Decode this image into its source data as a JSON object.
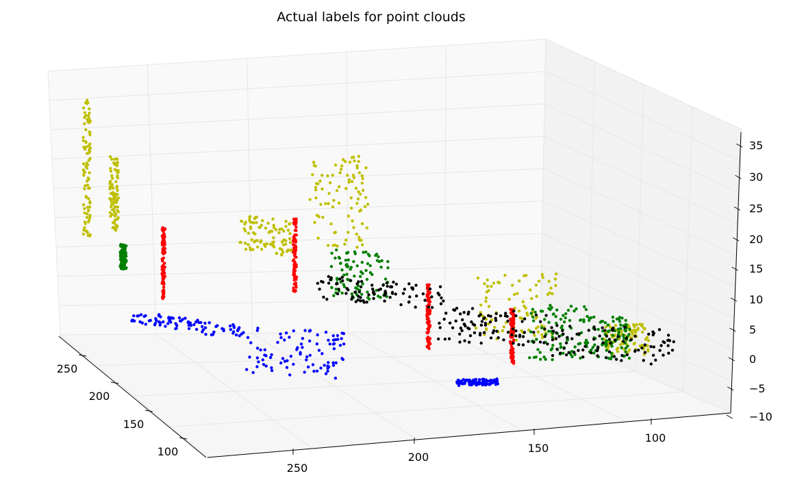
{
  "chart_data": {
    "type": "scatter",
    "projection": "3d",
    "title": "Actual labels for point clouds",
    "xlabel": "",
    "ylabel": "",
    "zlabel": "",
    "x_ticks": [
      "250",
      "200",
      "150",
      "100"
    ],
    "y_ticks": [
      "250",
      "200",
      "150",
      "100"
    ],
    "z_ticks": [
      "35",
      "30",
      "25",
      "20",
      "15",
      "10",
      "5",
      "0",
      "−5",
      "−10"
    ],
    "xlim": [
      290,
      90
    ],
    "ylim": [
      80,
      280
    ],
    "zlim": [
      -10,
      35
    ],
    "grid": true,
    "legend": "none",
    "series": [
      {
        "color": "#0000ff",
        "clusters": [
          {
            "x": [
              285,
              250
            ],
            "y": [
              200,
              165
            ],
            "z": [
              0,
              2
            ]
          },
          {
            "x": [
              250,
              215
            ],
            "y": [
              165,
              150
            ],
            "z": [
              2,
              -6
            ]
          },
          {
            "x": [
              180,
              165
            ],
            "y": [
              125,
              122
            ],
            "z": [
              -6,
              -5
            ]
          }
        ]
      },
      {
        "color": "#bfbf00",
        "clusters": [
          {
            "x": [
              285,
              283
            ],
            "y": [
              265,
              262
            ],
            "z": [
              8,
              31
            ]
          },
          {
            "x": [
              275,
              272
            ],
            "y": [
              262,
              260
            ],
            "z": [
              9,
              21
            ]
          },
          {
            "x": [
              235,
              218
            ],
            "y": [
              220,
              208
            ],
            "z": [
              9,
              15
            ]
          },
          {
            "x": [
              215,
              195
            ],
            "y": [
              195,
              185
            ],
            "z": [
              12,
              27
            ]
          },
          {
            "x": [
              165,
              135
            ],
            "y": [
              150,
              140
            ],
            "z": [
              -1,
              10
            ]
          },
          {
            "x": [
              125,
              110
            ],
            "y": [
              118,
              112
            ],
            "z": [
              -2,
              3
            ]
          }
        ]
      },
      {
        "color": "#007f00",
        "clusters": [
          {
            "x": [
              272,
              270
            ],
            "y": [
              258,
              256
            ],
            "z": [
              3,
              7
            ]
          },
          {
            "x": [
              210,
              190
            ],
            "y": [
              185,
              175
            ],
            "z": [
              4,
              12
            ]
          },
          {
            "x": [
              150,
              130
            ],
            "y": [
              130,
              122
            ],
            "z": [
              -3,
              6
            ]
          },
          {
            "x": [
              130,
              115
            ],
            "y": [
              125,
              118
            ],
            "z": [
              -3,
              4
            ]
          }
        ]
      },
      {
        "color": "#ff0000",
        "clusters": [
          {
            "x": [
              262,
              261
            ],
            "y": [
              235,
              234
            ],
            "z": [
              0,
              12
            ]
          },
          {
            "x": [
              220,
              219
            ],
            "y": [
              200,
              199
            ],
            "z": [
              4,
              16
            ]
          },
          {
            "x": [
              180,
              179
            ],
            "y": [
              160,
              159
            ],
            "z": [
              -3,
              8
            ]
          },
          {
            "x": [
              155,
              154
            ],
            "y": [
              137,
              136
            ],
            "z": [
              -4,
              5
            ]
          }
        ]
      },
      {
        "color": "#000000",
        "clusters": [
          {
            "x": [
              215,
              175
            ],
            "y": [
              185,
              155
            ],
            "z": [
              4,
              8
            ]
          },
          {
            "x": [
              175,
              140
            ],
            "y": [
              160,
              140
            ],
            "z": [
              -2,
              4
            ]
          },
          {
            "x": [
              140,
              100
            ],
            "y": [
              140,
              110
            ],
            "z": [
              -4,
              2
            ]
          }
        ]
      }
    ]
  }
}
